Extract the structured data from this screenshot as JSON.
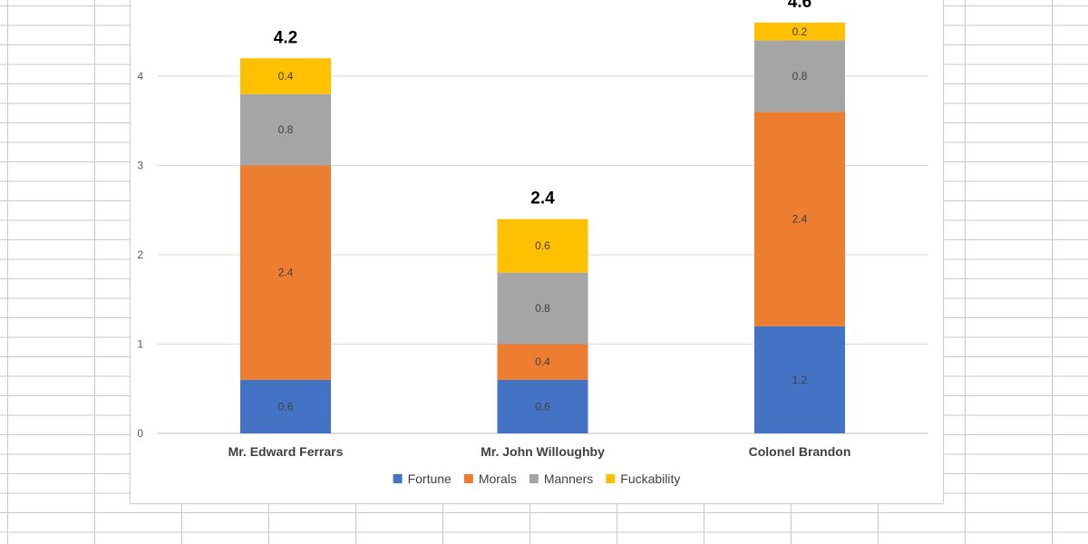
{
  "chart_data": {
    "type": "bar",
    "stacked": true,
    "title": "",
    "xlabel": "",
    "ylabel": "",
    "ylim": [
      0,
      4.8
    ],
    "yticks": [
      0,
      1,
      2,
      3,
      4
    ],
    "grid": true,
    "legend_position": "bottom",
    "categories": [
      "Mr. Edward Ferrars",
      "Mr. John Willoughby",
      "Colonel Brandon"
    ],
    "series": [
      {
        "name": "Fortune",
        "color": "#4472c4",
        "values": [
          0.6,
          0.6,
          1.2
        ],
        "labels": [
          "0.6",
          "0.6",
          "1.2"
        ]
      },
      {
        "name": "Morals",
        "color": "#ed7d31",
        "values": [
          2.4,
          0.4,
          2.4
        ],
        "labels": [
          "2.4",
          "0.4",
          "2.4"
        ]
      },
      {
        "name": "Manners",
        "color": "#a5a5a5",
        "values": [
          0.8,
          0.8,
          0.8
        ],
        "labels": [
          "0.8",
          "0.8",
          "0.8"
        ]
      },
      {
        "name": "Fuckability",
        "color": "#ffc000",
        "values": [
          0.4,
          0.6,
          0.2
        ],
        "labels": [
          "0.4",
          "0.6",
          "0.2"
        ]
      }
    ],
    "totals": [
      4.2,
      2.4,
      4.6
    ],
    "total_labels": [
      "4.2",
      "2.4",
      "4.6"
    ]
  }
}
